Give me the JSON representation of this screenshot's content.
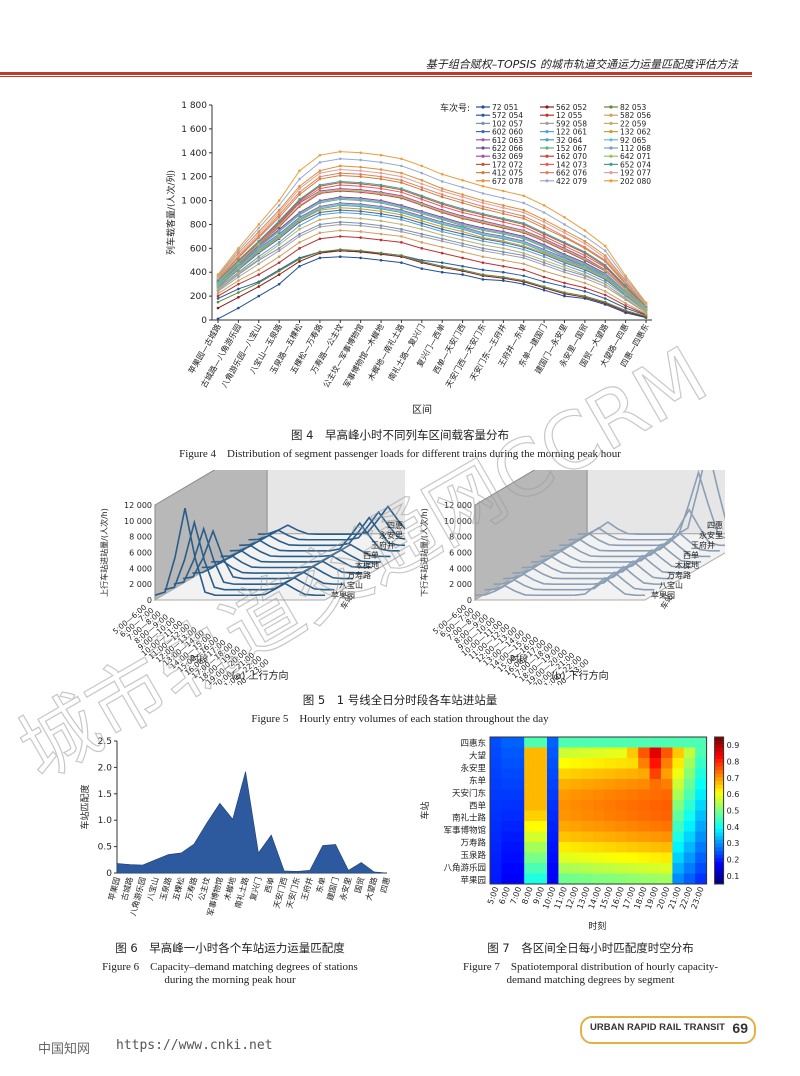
{
  "header": {
    "title": "基于组合赋权–TOPSIS 的城市轨道交通运力运量匹配度评估方法",
    "accent_color": "#c0392b"
  },
  "fig4": {
    "caption_cn": "图 4　早高峰小时不同列车区间载客量分布",
    "caption_en": "Figure 4　Distribution of segment passenger loads for different trains during the morning peak hour",
    "ylabel": "列车载客量/(人次/列)",
    "xlabel": "区间",
    "legend_title": "车次号:",
    "yticks": [
      "0",
      "200",
      "400",
      "600",
      "800",
      "1 000",
      "1 200",
      "1 400",
      "1 600",
      "1 800"
    ],
    "segments": [
      "苹果园—古城路",
      "古城路—八角游乐园",
      "八角游乐园—八宝山",
      "八宝山—玉泉路",
      "玉泉路—五棵松",
      "五棵松—万寿路",
      "万寿路—公主坟",
      "公主坟—军事博物馆",
      "军事博物馆—木樨地",
      "木樨地—南礼士路",
      "南礼士路—复兴门",
      "复兴门—西单",
      "西单—天安门西",
      "天安门西—天安门东",
      "天安门东—王府井",
      "王府井—东单",
      "东单—建国门",
      "建国门—永安里",
      "永安里—国贸",
      "国贸—大望路",
      "大望路—四惠",
      "四惠—四惠东"
    ]
  },
  "chart_data": [
    {
      "type": "line",
      "title": "",
      "xlabel": "区间",
      "ylabel": "列车载客量/(人次/列)",
      "ylim": [
        0,
        1800
      ],
      "legend_position": "top-right",
      "categories": [
        "苹果园—古城路",
        "古城路—八角游乐园",
        "八角游乐园—八宝山",
        "八宝山—玉泉路",
        "玉泉路—五棵松",
        "五棵松—万寿路",
        "万寿路—公主坟",
        "公主坟—军事博物馆",
        "军事博物馆—木樨地",
        "木樨地—南礼士路",
        "南礼士路—复兴门",
        "复兴门—西单",
        "西单—天安门西",
        "天安门西—天安门东",
        "天安门东—王府井",
        "王府井—东单",
        "东单—建国门",
        "建国门—永安里",
        "永安里—国贸",
        "国贸—大望路",
        "大望路—四惠",
        "四惠—四惠东"
      ],
      "series": [
        {
          "name": "72 051",
          "color": "#1f4e9c",
          "values": [
            10,
            100,
            200,
            300,
            450,
            520,
            530,
            520,
            500,
            480,
            430,
            400,
            380,
            340,
            330,
            300,
            250,
            200,
            180,
            130,
            60,
            20
          ]
        },
        {
          "name": "572 054",
          "color": "#2c5aa0",
          "values": [
            180,
            260,
            320,
            420,
            520,
            570,
            580,
            570,
            560,
            540,
            500,
            480,
            450,
            420,
            400,
            370,
            320,
            280,
            240,
            180,
            100,
            40
          ]
        },
        {
          "name": "102 057",
          "color": "#7a8fb8",
          "values": [
            250,
            380,
            500,
            600,
            720,
            800,
            820,
            810,
            790,
            760,
            720,
            680,
            640,
            600,
            570,
            540,
            480,
            420,
            370,
            300,
            180,
            60
          ]
        },
        {
          "name": "602 060",
          "color": "#3b6db0",
          "values": [
            280,
            420,
            560,
            680,
            820,
            900,
            920,
            910,
            890,
            860,
            810,
            760,
            720,
            680,
            650,
            610,
            550,
            480,
            420,
            340,
            210,
            80
          ]
        },
        {
          "name": "612 063",
          "color": "#9a5aa5",
          "values": [
            300,
            450,
            600,
            720,
            860,
            950,
            980,
            970,
            950,
            920,
            870,
            820,
            780,
            730,
            700,
            660,
            590,
            520,
            450,
            370,
            230,
            90
          ]
        },
        {
          "name": "622 066",
          "color": "#6e4ea0",
          "values": [
            310,
            470,
            620,
            760,
            900,
            1000,
            1030,
            1020,
            1000,
            960,
            910,
            860,
            810,
            770,
            740,
            700,
            630,
            550,
            480,
            390,
            240,
            90
          ]
        },
        {
          "name": "632 069",
          "color": "#b04a9a",
          "values": [
            320,
            480,
            640,
            800,
            980,
            1080,
            1100,
            1090,
            1070,
            1040,
            980,
            920,
            870,
            830,
            790,
            750,
            680,
            600,
            520,
            420,
            260,
            100
          ]
        },
        {
          "name": "172 072",
          "color": "#c05a3a",
          "values": [
            330,
            500,
            660,
            820,
            1000,
            1120,
            1150,
            1140,
            1120,
            1090,
            1030,
            970,
            920,
            880,
            840,
            800,
            720,
            640,
            560,
            450,
            280,
            110
          ]
        },
        {
          "name": "412 075",
          "color": "#d08040",
          "values": [
            340,
            520,
            690,
            860,
            1050,
            1180,
            1210,
            1200,
            1180,
            1150,
            1090,
            1030,
            980,
            930,
            890,
            850,
            770,
            690,
            600,
            490,
            300,
            120
          ]
        },
        {
          "name": "672 078",
          "color": "#e0903a",
          "values": [
            360,
            560,
            740,
            920,
            1120,
            1250,
            1290,
            1280,
            1260,
            1230,
            1170,
            1100,
            1050,
            1000,
            960,
            920,
            840,
            750,
            660,
            540,
            330,
            130
          ]
        },
        {
          "name": "562 052",
          "color": "#8b1a1a",
          "values": [
            100,
            190,
            280,
            380,
            490,
            560,
            580,
            570,
            550,
            530,
            480,
            440,
            410,
            370,
            350,
            320,
            270,
            220,
            190,
            140,
            70,
            25
          ]
        },
        {
          "name": "12 055",
          "color": "#c03030",
          "values": [
            200,
            300,
            380,
            480,
            600,
            680,
            700,
            690,
            670,
            650,
            600,
            560,
            520,
            480,
            450,
            420,
            360,
            310,
            270,
            210,
            120,
            45
          ]
        },
        {
          "name": "592 058",
          "color": "#a0a0a0",
          "values": [
            240,
            360,
            470,
            580,
            700,
            780,
            800,
            790,
            770,
            740,
            700,
            660,
            620,
            580,
            550,
            520,
            460,
            400,
            350,
            280,
            170,
            60
          ]
        },
        {
          "name": "122 061",
          "color": "#5fa0d0",
          "values": [
            270,
            400,
            530,
            650,
            790,
            880,
            900,
            890,
            870,
            840,
            790,
            740,
            700,
            660,
            630,
            590,
            530,
            460,
            400,
            320,
            200,
            75
          ]
        },
        {
          "name": "32 064",
          "color": "#4aa0b0",
          "values": [
            290,
            430,
            580,
            700,
            840,
            930,
            960,
            950,
            930,
            900,
            850,
            800,
            760,
            710,
            680,
            640,
            570,
            500,
            440,
            360,
            220,
            85
          ]
        },
        {
          "name": "152 067",
          "color": "#60b080",
          "values": [
            305,
            460,
            610,
            740,
            880,
            980,
            1010,
            1000,
            980,
            940,
            890,
            840,
            790,
            750,
            720,
            680,
            610,
            530,
            460,
            380,
            235,
            90
          ]
        },
        {
          "name": "162 070",
          "color": "#d04040",
          "values": [
            315,
            475,
            630,
            780,
            950,
            1060,
            1080,
            1070,
            1050,
            1020,
            960,
            900,
            850,
            810,
            770,
            730,
            660,
            580,
            500,
            410,
            255,
            95
          ]
        },
        {
          "name": "142 073",
          "color": "#e06060",
          "values": [
            325,
            490,
            650,
            810,
            990,
            1100,
            1130,
            1120,
            1100,
            1070,
            1010,
            950,
            900,
            860,
            820,
            780,
            700,
            620,
            540,
            440,
            270,
            105
          ]
        },
        {
          "name": "662 076",
          "color": "#e08060",
          "values": [
            345,
            530,
            700,
            880,
            1070,
            1200,
            1230,
            1220,
            1200,
            1170,
            1110,
            1050,
            1000,
            950,
            910,
            870,
            790,
            700,
            610,
            500,
            310,
            120
          ]
        },
        {
          "name": "422 079",
          "color": "#9aaad0",
          "values": [
            370,
            580,
            770,
            960,
            1180,
            1320,
            1350,
            1340,
            1320,
            1290,
            1230,
            1160,
            1110,
            1060,
            1020,
            980,
            900,
            800,
            700,
            580,
            350,
            140
          ]
        },
        {
          "name": "82 053",
          "color": "#5a8a3a",
          "values": [
            150,
            230,
            310,
            410,
            510,
            570,
            590,
            580,
            560,
            540,
            490,
            450,
            420,
            380,
            360,
            330,
            280,
            230,
            200,
            150,
            80,
            30
          ]
        },
        {
          "name": "582 056",
          "color": "#d0a060",
          "values": [
            220,
            330,
            420,
            530,
            650,
            730,
            750,
            740,
            720,
            700,
            650,
            610,
            570,
            530,
            500,
            470,
            410,
            360,
            310,
            240,
            140,
            50
          ]
        },
        {
          "name": "22 059",
          "color": "#c0b070",
          "values": [
            260,
            390,
            510,
            630,
            760,
            840,
            860,
            850,
            830,
            800,
            760,
            710,
            670,
            630,
            600,
            560,
            500,
            440,
            380,
            300,
            185,
            65
          ]
        },
        {
          "name": "132 062",
          "color": "#c8a030",
          "values": [
            285,
            425,
            570,
            690,
            830,
            920,
            940,
            930,
            910,
            880,
            830,
            780,
            740,
            690,
            660,
            620,
            560,
            490,
            430,
            350,
            215,
            80
          ]
        },
        {
          "name": "92 065",
          "color": "#60c0d0",
          "values": [
            295,
            440,
            590,
            710,
            850,
            940,
            970,
            960,
            940,
            910,
            860,
            810,
            770,
            720,
            690,
            650,
            580,
            510,
            445,
            365,
            225,
            88
          ]
        },
        {
          "name": "112 068",
          "color": "#7aa0c0",
          "values": [
            308,
            465,
            615,
            750,
            890,
            990,
            1020,
            1010,
            990,
            950,
            900,
            850,
            800,
            760,
            730,
            690,
            620,
            540,
            470,
            385,
            238,
            92
          ]
        },
        {
          "name": "642 071",
          "color": "#a0c060",
          "values": [
            318,
            480,
            635,
            790,
            960,
            1070,
            1090,
            1080,
            1060,
            1030,
            970,
            910,
            860,
            820,
            780,
            740,
            670,
            590,
            510,
            415,
            258,
            98
          ]
        },
        {
          "name": "652 074",
          "color": "#40a0a0",
          "values": [
            328,
            495,
            660,
            830,
            1010,
            1130,
            1160,
            1150,
            1130,
            1100,
            1040,
            980,
            930,
            890,
            850,
            810,
            730,
            650,
            570,
            460,
            285,
            112
          ]
        },
        {
          "name": "192 077",
          "color": "#e0a0a0",
          "values": [
            350,
            540,
            720,
            900,
            1100,
            1230,
            1260,
            1250,
            1230,
            1200,
            1140,
            1080,
            1030,
            980,
            940,
            900,
            820,
            730,
            640,
            520,
            320,
            125
          ]
        },
        {
          "name": "202 080",
          "color": "#e8a040",
          "values": [
            380,
            600,
            800,
            1000,
            1250,
            1380,
            1410,
            1400,
            1380,
            1350,
            1290,
            1220,
            1170,
            1120,
            1080,
            1040,
            960,
            860,
            750,
            620,
            370,
            145
          ]
        }
      ]
    },
    {
      "type": "area",
      "title": "",
      "xlabel": "",
      "ylabel": "车站匹配度",
      "ylim": [
        0,
        2.5
      ],
      "categories": [
        "苹果园",
        "古城路",
        "八角游乐园",
        "八宝山",
        "玉泉路",
        "五棵松",
        "万寿路",
        "公主坟",
        "军事博物馆",
        "木樨地",
        "南礼士路",
        "复兴门",
        "西单",
        "天安门西",
        "天安门东",
        "王府井",
        "东单",
        "建国门",
        "永安里",
        "国贸",
        "大望路",
        "四惠"
      ],
      "values": [
        0.18,
        0.16,
        0.15,
        0.25,
        0.35,
        0.38,
        0.55,
        0.95,
        1.32,
        1.02,
        1.92,
        0.38,
        0.72,
        0.04,
        0.03,
        0.05,
        0.52,
        0.54,
        0.05,
        0.2,
        0.02,
        0.0
      ]
    }
  ],
  "fig5": {
    "caption_cn": "图 5　1 号线全日分时段各车站进站量",
    "caption_en": "Figure 5　Hourly entry volumes of each station throughout the day",
    "a_label": "(a) 上行方向",
    "b_label": "(b) 下行方向",
    "a_ylabel": "上行车站进站量/(人次/h)",
    "b_ylabel": "下行车站进站量/(人次/h)",
    "yticks": [
      "0",
      "2 000",
      "4 000",
      "6 000",
      "8 000",
      "10 000",
      "12 000"
    ],
    "xlabel": "时段",
    "station_axis": "车站",
    "periods": [
      "5:00—6:00",
      "6:00—7:00",
      "7:00—8:00",
      "8:00—9:00",
      "9:00—10:00",
      "10:00—11:00",
      "11:00—12:00",
      "12:00—13:00",
      "13:00—14:00",
      "14:00—15:00",
      "15:00—16:00",
      "16:00—17:00",
      "17:00—18:00",
      "18:00—19:00",
      "19:00—20:00",
      "20:00—21:00",
      "21:00—22:00",
      "22:00—23:00"
    ],
    "stations": [
      "苹果园",
      "八宝山",
      "万寿路",
      "木樨地",
      "西单",
      "王府井",
      "永安里",
      "四惠"
    ]
  },
  "fig6": {
    "caption_cn": "图 6　早高峰一小时各个车站运力运量匹配度",
    "caption_en_1": "Figure 6　Capacity–demand matching degrees of stations",
    "caption_en_2": "during the morning peak hour",
    "ylabel": "车站匹配度",
    "yticks": [
      "0",
      "0.5",
      "1.0",
      "1.5",
      "2.0",
      "2.5"
    ],
    "fill_color": "#2d5a9e"
  },
  "fig7": {
    "caption_cn": "图 7　各区间全日每小时匹配度时空分布",
    "caption_en_1": "Figure 7　Spatiotemporal distribution of hourly capacity-",
    "caption_en_2": "demand matching degrees by segment",
    "ylabel": "车站",
    "xlabel": "时刻",
    "stations": [
      "四惠东",
      "大望",
      "永安里",
      "东单",
      "天安门东",
      "西单",
      "南礼士路",
      "军事博物馆",
      "万寿路",
      "玉泉路",
      "八角游乐园",
      "苹果园"
    ],
    "times": [
      "5:00",
      "6:00",
      "7:00",
      "8:00",
      "9:00",
      "10:00",
      "11:00",
      "12:00",
      "13:00",
      "14:00",
      "15:00",
      "16:00",
      "17:00",
      "18:00",
      "19:00",
      "20:00",
      "21:00",
      "22:00",
      "23:00"
    ],
    "cbar_ticks": [
      "0.1",
      "0.2",
      "0.3",
      "0.4",
      "0.5",
      "0.6",
      "0.7",
      "0.8",
      "0.9"
    ]
  },
  "watermark": {
    "text": "城市轨道交通网CCRM"
  },
  "footer": {
    "site": "中国知网",
    "url": "https://www.cnki.net",
    "journal": "URBAN RAPID RAIL TRANSIT",
    "page": "69"
  }
}
